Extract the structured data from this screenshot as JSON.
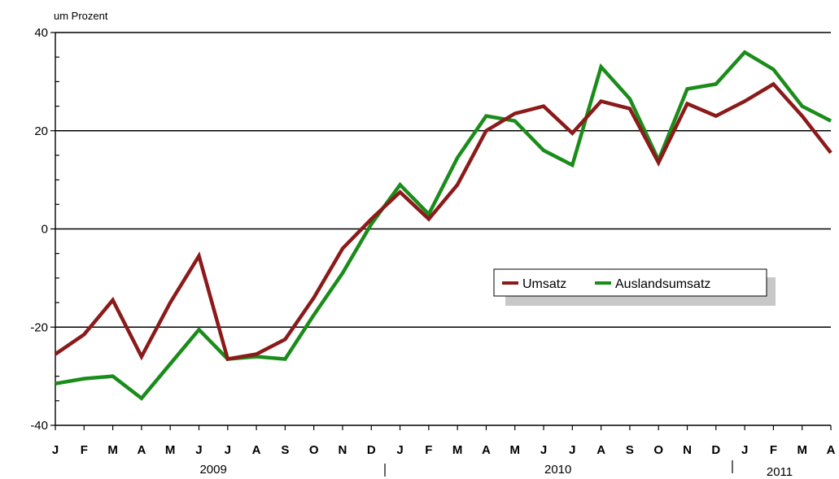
{
  "chart_data": {
    "type": "line",
    "title": "",
    "unit_label": "um Prozent",
    "ylim": [
      -40,
      40
    ],
    "y_ticks": [
      "40",
      "20",
      "0",
      "-20",
      "-40"
    ],
    "grid": "horizontal at 20, 0, -20",
    "legend_placement": "center-right",
    "categories": [
      "J",
      "F",
      "M",
      "A",
      "M",
      "J",
      "J",
      "A",
      "S",
      "O",
      "N",
      "D",
      "J",
      "F",
      "M",
      "A",
      "M",
      "J",
      "J",
      "A",
      "S",
      "O",
      "N",
      "D",
      "J",
      "F",
      "M",
      "A"
    ],
    "years": [
      {
        "label": "2009",
        "start": 0,
        "end": 11
      },
      {
        "label": "2010",
        "start": 12,
        "end": 23
      },
      {
        "label": "2011",
        "start": 24,
        "end": 27
      }
    ],
    "series": [
      {
        "name": "Umsatz",
        "color": "#8B1A1A",
        "values": [
          -25.5,
          -21.5,
          -14.5,
          -26,
          -15,
          -5.5,
          -26.5,
          -25.5,
          -22.5,
          -14,
          -4,
          2,
          7.5,
          2,
          9,
          20,
          23.5,
          25,
          19.5,
          26,
          24.5,
          13.5,
          25.5,
          23,
          26,
          29.5,
          23,
          15.5
        ]
      },
      {
        "name": "Auslandsumsatz",
        "color": "#1A8C1A",
        "values": [
          -31.5,
          -30.5,
          -30,
          -34.5,
          -27.5,
          -20.5,
          -26.5,
          -26,
          -26.5,
          -17.5,
          -9,
          1,
          9,
          3,
          14.5,
          23,
          22,
          16,
          13,
          33,
          26.5,
          14,
          28.5,
          29.5,
          36,
          32.5,
          25,
          22
        ]
      }
    ]
  }
}
